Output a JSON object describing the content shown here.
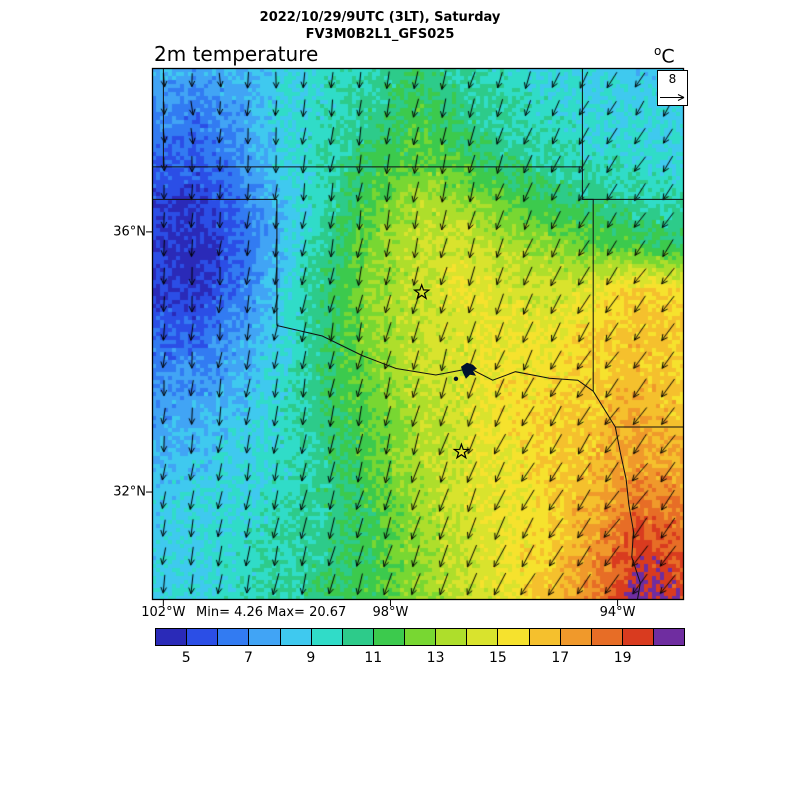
{
  "header": {
    "line1": "2022/10/29/9UTC (3LT), Saturday",
    "line2": "FV3M0B2L1_GFS025"
  },
  "title": "2m temperature",
  "units": {
    "sup": "o",
    "base": "C"
  },
  "wind_ref": {
    "value": "8"
  },
  "stats": {
    "text": "Min= 4.26 Max= 20.67"
  },
  "colorbar": {
    "colors": [
      "#2a2ab8",
      "#2b4ee6",
      "#327bf2",
      "#41a4f5",
      "#3fc9ef",
      "#30dcc8",
      "#2dcb8a",
      "#3cca4d",
      "#78d732",
      "#aede2b",
      "#d9e32d",
      "#f6e22d",
      "#f5c02d",
      "#f0992b",
      "#e76d26",
      "#d93b1f",
      "#6f2da0"
    ],
    "tick_labels": [
      "5",
      "7",
      "9",
      "11",
      "13",
      "15",
      "17",
      "19"
    ]
  },
  "chart_data": {
    "type": "heatmap",
    "title": "2m temperature",
    "model": "FV3M0B2L1_GFS025",
    "valid_time": "2022/10/29/9UTC (3LT), Saturday",
    "units": "°C",
    "min": 4.26,
    "max": 20.67,
    "contour_interval": 1,
    "levels": [
      5,
      7,
      9,
      11,
      13,
      15,
      17,
      19
    ],
    "lon_range_w": [
      102.2,
      92.83
    ],
    "lat_range": [
      38.52,
      30.34
    ],
    "lon_ticks": [
      {
        "value": 102,
        "label": "102°W"
      },
      {
        "value": 98,
        "label": "98°W"
      },
      {
        "value": 94,
        "label": "94°W"
      }
    ],
    "lat_ticks": [
      {
        "value": 36,
        "label": "36°N"
      },
      {
        "value": 32,
        "label": "32°N"
      }
    ],
    "temperature_grid": [
      [
        8.0,
        7.5,
        8.0,
        9.0,
        9.5,
        10.0,
        11.0,
        10.0,
        9.5,
        9.0,
        9.0,
        8.5,
        8.5
      ],
      [
        7.0,
        6.5,
        7.5,
        9.0,
        9.5,
        10.5,
        11.5,
        10.5,
        10.0,
        9.5,
        9.0,
        9.0,
        8.5
      ],
      [
        6.0,
        6.0,
        7.0,
        9.0,
        10.0,
        11.0,
        12.0,
        11.5,
        10.5,
        10.0,
        9.5,
        9.5,
        9.0
      ],
      [
        5.5,
        5.0,
        6.5,
        8.5,
        10.0,
        12.0,
        13.5,
        13.0,
        12.0,
        11.0,
        10.5,
        10.0,
        10.0
      ],
      [
        5.0,
        4.5,
        6.0,
        8.5,
        10.5,
        12.5,
        14.0,
        14.5,
        13.5,
        13.0,
        12.0,
        11.5,
        11.0
      ],
      [
        5.0,
        4.8,
        6.5,
        9.0,
        11.0,
        13.0,
        14.0,
        15.0,
        14.5,
        14.0,
        15.0,
        16.0,
        15.5
      ],
      [
        6.0,
        6.0,
        7.5,
        9.0,
        11.0,
        13.0,
        14.0,
        14.5,
        15.0,
        15.0,
        16.0,
        16.5,
        16.0
      ],
      [
        7.0,
        7.0,
        8.0,
        9.5,
        11.0,
        12.5,
        14.0,
        14.5,
        15.5,
        15.5,
        16.0,
        16.5,
        16.0
      ],
      [
        7.5,
        8.0,
        8.5,
        9.5,
        11.0,
        12.0,
        13.5,
        14.5,
        15.5,
        16.0,
        16.5,
        17.0,
        16.5
      ],
      [
        8.0,
        8.5,
        9.0,
        9.5,
        10.5,
        12.0,
        13.5,
        14.5,
        15.0,
        16.0,
        16.5,
        17.5,
        17.0
      ],
      [
        8.5,
        9.0,
        9.0,
        10.0,
        10.5,
        11.5,
        13.0,
        14.5,
        15.0,
        16.0,
        17.0,
        18.5,
        18.0
      ],
      [
        8.5,
        9.0,
        9.5,
        10.0,
        10.5,
        11.5,
        13.0,
        14.0,
        15.0,
        16.0,
        17.5,
        19.5,
        19.0
      ],
      [
        9.0,
        9.0,
        9.5,
        10.0,
        11.0,
        11.5,
        13.0,
        14.0,
        15.0,
        16.5,
        18.0,
        20.5,
        19.5
      ]
    ],
    "wind": {
      "reference": 8,
      "u": [
        [
          0.5,
          0.0,
          -0.5,
          -1.0,
          -1.5,
          -2.0,
          -2.5,
          -3.0
        ],
        [
          0.3,
          -0.2,
          -0.7,
          -1.0,
          -1.5,
          -2.0,
          -3.0,
          -3.0
        ],
        [
          0.0,
          -0.5,
          -1.0,
          -1.0,
          -1.5,
          -2.5,
          -3.0,
          -3.5
        ],
        [
          -0.3,
          -0.5,
          -1.0,
          -1.5,
          -2.0,
          -2.5,
          -3.5,
          -4.0
        ],
        [
          -0.5,
          -0.8,
          -1.0,
          -1.5,
          -2.0,
          -3.0,
          -4.0,
          -4.0
        ],
        [
          -0.5,
          -1.0,
          -1.2,
          -1.5,
          -2.5,
          -3.5,
          -4.0,
          -4.5
        ],
        [
          -0.8,
          -1.0,
          -1.5,
          -2.0,
          -2.5,
          -3.5,
          -4.5,
          -4.5
        ],
        [
          -1.0,
          -1.2,
          -1.5,
          -2.0,
          -3.0,
          -4.0,
          -4.5,
          -5.0
        ]
      ],
      "v": [
        [
          -4.0,
          -4.5,
          -5.0,
          -5.5,
          -5.5,
          -5.0,
          -4.5,
          -4.5
        ],
        [
          -4.5,
          -5.0,
          -5.5,
          -5.5,
          -6.0,
          -5.5,
          -5.0,
          -5.0
        ],
        [
          -5.0,
          -5.0,
          -5.5,
          -6.0,
          -6.0,
          -5.5,
          -5.0,
          -5.0
        ],
        [
          -5.0,
          -5.5,
          -5.5,
          -6.0,
          -6.0,
          -6.0,
          -5.5,
          -5.0
        ],
        [
          -5.0,
          -5.5,
          -6.0,
          -6.0,
          -6.5,
          -6.0,
          -5.5,
          -5.5
        ],
        [
          -5.5,
          -5.5,
          -6.0,
          -6.5,
          -6.5,
          -6.0,
          -6.0,
          -5.5
        ],
        [
          -5.5,
          -6.0,
          -6.0,
          -6.5,
          -7.0,
          -6.5,
          -6.0,
          -6.0
        ],
        [
          -6.0,
          -6.0,
          -6.5,
          -6.5,
          -7.0,
          -7.0,
          -6.5,
          -6.0
        ]
      ]
    },
    "markers": [
      {
        "type": "star",
        "lon": 97.45,
        "lat": 35.07
      },
      {
        "type": "star",
        "lon": 96.75,
        "lat": 32.62
      }
    ],
    "lake": {
      "lon": 96.6,
      "lat": 33.88
    },
    "borders": [
      [
        [
          102.2,
          37.0
        ],
        [
          94.62,
          37.0
        ]
      ],
      [
        [
          102.0,
          38.52
        ],
        [
          102.0,
          37.0
        ]
      ],
      [
        [
          102.2,
          36.5
        ],
        [
          100.0,
          36.5
        ]
      ],
      [
        [
          100.0,
          36.5
        ],
        [
          100.0,
          34.56
        ]
      ],
      [
        [
          100.0,
          34.56
        ],
        [
          99.2,
          34.4
        ],
        [
          98.5,
          34.1
        ],
        [
          97.9,
          33.9
        ],
        [
          97.2,
          33.8
        ],
        [
          96.9,
          33.85
        ],
        [
          96.6,
          33.9
        ],
        [
          96.2,
          33.72
        ],
        [
          95.8,
          33.85
        ],
        [
          95.2,
          33.75
        ],
        [
          94.7,
          33.72
        ],
        [
          94.43,
          33.55
        ]
      ],
      [
        [
          94.62,
          37.0
        ],
        [
          94.62,
          36.5
        ],
        [
          94.43,
          36.5
        ],
        [
          94.43,
          33.55
        ]
      ],
      [
        [
          94.62,
          36.5
        ],
        [
          92.83,
          36.5
        ]
      ],
      [
        [
          94.62,
          38.52
        ],
        [
          94.62,
          37.0
        ]
      ],
      [
        [
          94.43,
          33.55
        ],
        [
          94.04,
          33.0
        ]
      ],
      [
        [
          94.04,
          33.0
        ],
        [
          92.83,
          33.0
        ]
      ],
      [
        [
          94.04,
          33.0
        ],
        [
          93.95,
          32.6
        ],
        [
          93.85,
          32.2
        ],
        [
          93.8,
          31.8
        ],
        [
          93.72,
          31.4
        ],
        [
          93.75,
          31.0
        ],
        [
          93.6,
          30.6
        ],
        [
          93.65,
          30.34
        ]
      ]
    ]
  }
}
